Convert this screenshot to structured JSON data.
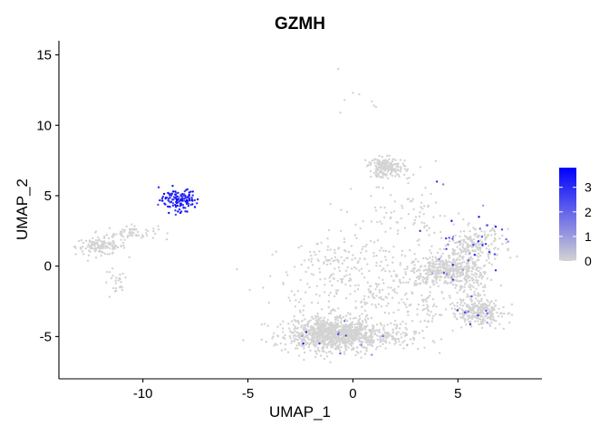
{
  "chart_data": {
    "type": "scatter",
    "title": "GZMH",
    "xlabel": "UMAP_1",
    "ylabel": "UMAP_2",
    "xlim": [
      -14,
      9
    ],
    "ylim": [
      -8,
      16
    ],
    "x_ticks": [
      -10,
      -5,
      0,
      5
    ],
    "y_ticks": [
      -5,
      0,
      5,
      10,
      15
    ],
    "x_tick_labels": [
      "-10",
      "-5",
      "0",
      "5"
    ],
    "y_tick_labels": [
      "-5",
      "0",
      "5",
      "10",
      "15"
    ],
    "grid": false,
    "colors": {
      "low": "#d3d3d3",
      "high": "#0000ff"
    },
    "legend": {
      "position": "right",
      "type": "colorbar",
      "range": [
        0,
        3.8
      ],
      "ticks": [
        0,
        1,
        2,
        3
      ],
      "tick_labels": [
        "0",
        "1",
        "2",
        "3"
      ]
    },
    "clusters": [
      {
        "cx": -8.3,
        "cy": 4.7,
        "sx": 0.45,
        "sy": 0.4,
        "n": 130,
        "expr": 3.2
      },
      {
        "cx": -10.5,
        "cy": 2.4,
        "sx": 0.6,
        "sy": 0.25,
        "n": 60,
        "expr": 0
      },
      {
        "cx": -12.0,
        "cy": 1.4,
        "sx": 0.6,
        "sy": 0.3,
        "n": 130,
        "expr": 0
      },
      {
        "cx": -11.3,
        "cy": -1.3,
        "sx": 0.3,
        "sy": 0.6,
        "n": 25,
        "expr": 0
      },
      {
        "cx": -1.2,
        "cy": -4.8,
        "sx": 1.0,
        "sy": 0.55,
        "n": 900,
        "expr": 0.05
      },
      {
        "cx": 0.8,
        "cy": -5.0,
        "sx": 1.2,
        "sy": 0.45,
        "n": 250,
        "expr": 0.05
      },
      {
        "cx": 0.5,
        "cy": -1.8,
        "sx": 2.0,
        "sy": 1.8,
        "n": 250,
        "expr": 0
      },
      {
        "cx": -0.8,
        "cy": 0.3,
        "sx": 1.2,
        "sy": 0.8,
        "n": 80,
        "expr": 0
      },
      {
        "cx": 2.5,
        "cy": 3.5,
        "sx": 1.2,
        "sy": 1.2,
        "n": 80,
        "expr": 0
      },
      {
        "cx": 1.6,
        "cy": 7.0,
        "sx": 0.45,
        "sy": 0.35,
        "n": 180,
        "expr": 0
      },
      {
        "cx": 4.5,
        "cy": -0.3,
        "sx": 0.7,
        "sy": 0.5,
        "n": 350,
        "expr": 0.1
      },
      {
        "cx": 5.8,
        "cy": 1.5,
        "sx": 0.7,
        "sy": 0.6,
        "n": 220,
        "expr": 0.5
      },
      {
        "cx": 5.9,
        "cy": -3.3,
        "sx": 0.6,
        "sy": 0.45,
        "n": 280,
        "expr": 0.1
      },
      {
        "cx": 5.6,
        "cy": -1.0,
        "sx": 0.4,
        "sy": 0.8,
        "n": 100,
        "expr": 0.1
      },
      {
        "cx": 3.2,
        "cy": -1.8,
        "sx": 1.0,
        "sy": 1.5,
        "n": 120,
        "expr": 0
      }
    ],
    "points": [
      {
        "x": -0.7,
        "y": 14.0,
        "v": 0
      },
      {
        "x": -0.4,
        "y": 11.8,
        "v": 0
      },
      {
        "x": 0.0,
        "y": 12.3,
        "v": 0
      },
      {
        "x": 0.3,
        "y": 12.2,
        "v": 0
      },
      {
        "x": 0.9,
        "y": 11.7,
        "v": 0
      },
      {
        "x": 1.0,
        "y": 11.4,
        "v": 0
      },
      {
        "x": 1.1,
        "y": 11.3,
        "v": 0
      },
      {
        "x": -0.6,
        "y": 10.9,
        "v": 0
      },
      {
        "x": 4.0,
        "y": 6.0,
        "v": 3.0
      },
      {
        "x": 4.3,
        "y": 5.8,
        "v": 1.5
      },
      {
        "x": 4.7,
        "y": 3.2,
        "v": 3.2
      },
      {
        "x": 6.0,
        "y": 3.5,
        "v": 3.5
      },
      {
        "x": 6.2,
        "y": 4.3,
        "v": 1.0
      },
      {
        "x": 6.8,
        "y": 2.8,
        "v": 3.2
      },
      {
        "x": 7.1,
        "y": 2.6,
        "v": 2.5
      },
      {
        "x": 6.5,
        "y": 1.0,
        "v": 2.8
      },
      {
        "x": 7.3,
        "y": 1.9,
        "v": 2.0
      },
      {
        "x": 3.2,
        "y": 2.5,
        "v": 3.0
      },
      {
        "x": 5.5,
        "y": 0.4,
        "v": 2.2
      },
      {
        "x": -1.6,
        "y": -5.5,
        "v": 2.5
      },
      {
        "x": -0.6,
        "y": -6.2,
        "v": 2.0
      },
      {
        "x": 0.4,
        "y": -5.6,
        "v": 1.5
      },
      {
        "x": -0.4,
        "y": -3.9,
        "v": 1.8
      },
      {
        "x": 0.9,
        "y": -6.3,
        "v": 1.2
      },
      {
        "x": 6.8,
        "y": -0.3,
        "v": 3.0
      },
      {
        "x": 5.8,
        "y": 0.8,
        "v": 3.3
      },
      {
        "x": 6.4,
        "y": 2.9,
        "v": 2.6
      },
      {
        "x": 7.5,
        "y": 0.6,
        "v": 0
      },
      {
        "x": 7.4,
        "y": 1.2,
        "v": 0
      }
    ]
  }
}
